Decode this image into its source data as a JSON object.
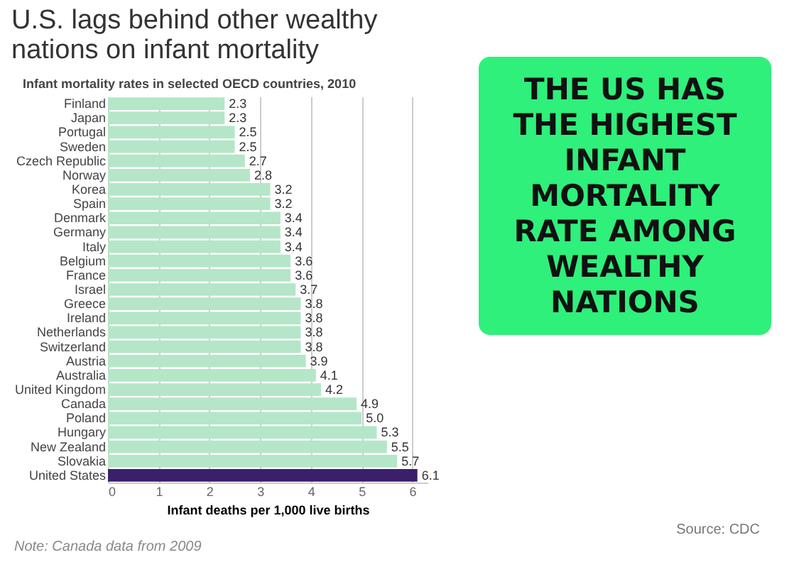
{
  "chart_data": {
    "type": "bar",
    "orientation": "horizontal",
    "title": "U.S. lags behind other wealthy nations on infant mortality",
    "subtitle": "Infant mortality rates in selected OECD countries, 2010",
    "xlabel": "Infant deaths per 1,000 live births",
    "categories": [
      "Finland",
      "Japan",
      "Portugal",
      "Sweden",
      "Czech Republic",
      "Norway",
      "Korea",
      "Spain",
      "Denmark",
      "Germany",
      "Italy",
      "Belgium",
      "France",
      "Israel",
      "Greece",
      "Ireland",
      "Netherlands",
      "Switzerland",
      "Austria",
      "Australia",
      "United Kingdom",
      "Canada",
      "Poland",
      "Hungary",
      "New Zealand",
      "Slovakia",
      "United States"
    ],
    "values": [
      2.3,
      2.3,
      2.5,
      2.5,
      2.7,
      2.8,
      3.2,
      3.2,
      3.4,
      3.4,
      3.4,
      3.6,
      3.6,
      3.7,
      3.8,
      3.8,
      3.8,
      3.8,
      3.9,
      4.1,
      4.2,
      4.9,
      5.0,
      5.3,
      5.5,
      5.7,
      6.1
    ],
    "value_labels": [
      "2.3",
      "2.3",
      "2.5",
      "2.5",
      "2.7",
      "2.8",
      "3.2",
      "3.2",
      "3.4",
      "3.4",
      "3.4",
      "3.6",
      "3.6",
      "3.7",
      "3.8",
      "3.8",
      "3.8",
      "3.8",
      "3.9",
      "4.1",
      "4.2",
      "4.9",
      "5.0",
      "5.3",
      "5.5",
      "5.7",
      "6.1"
    ],
    "colors": [
      "#b5e6c8",
      "#b5e6c8",
      "#b5e6c8",
      "#b5e6c8",
      "#b5e6c8",
      "#b5e6c8",
      "#b5e6c8",
      "#b5e6c8",
      "#b5e6c8",
      "#b5e6c8",
      "#b5e6c8",
      "#b5e6c8",
      "#b5e6c8",
      "#b5e6c8",
      "#b5e6c8",
      "#b5e6c8",
      "#b5e6c8",
      "#b5e6c8",
      "#b5e6c8",
      "#b5e6c8",
      "#b5e6c8",
      "#b5e6c8",
      "#b5e6c8",
      "#b5e6c8",
      "#b5e6c8",
      "#b5e6c8",
      "#3b1f6b"
    ],
    "xlim": [
      0,
      6.3
    ],
    "xticks": [
      0,
      1,
      2,
      3,
      4,
      5,
      6
    ],
    "grid": "x",
    "annotations": [
      "THE US HAS THE HIGHEST INFANT MORTALITY RATE AMONG WEALTHY NATIONS",
      "Source: CDC",
      "Note: Canada data from 2009"
    ]
  }
}
